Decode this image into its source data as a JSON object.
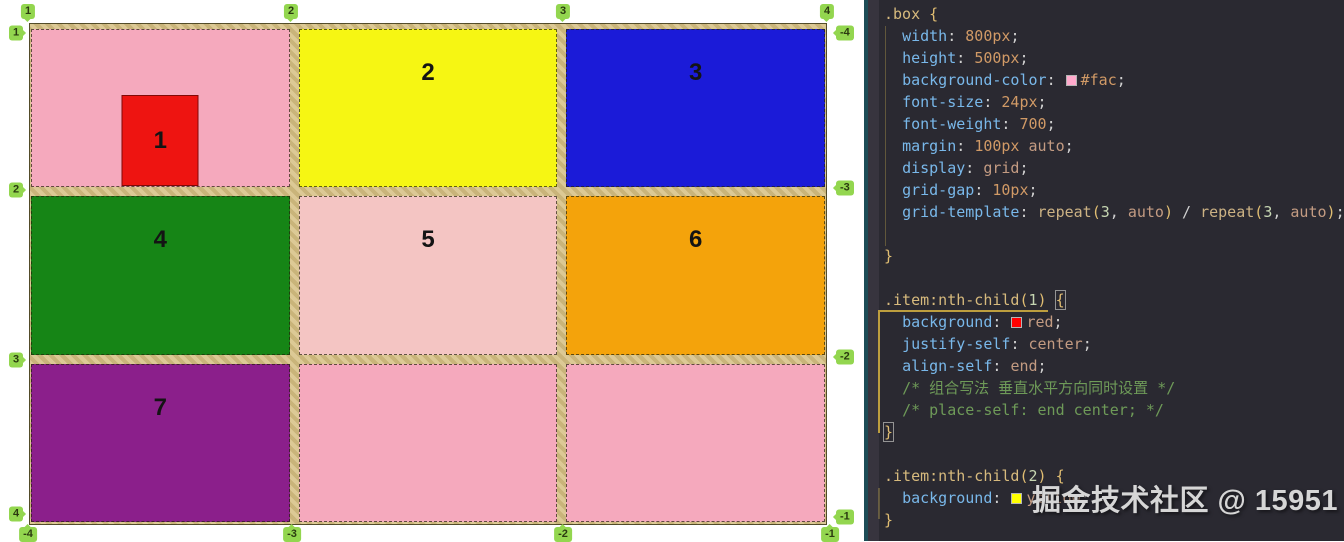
{
  "grid_preview": {
    "line_badges": {
      "top": [
        "1",
        "2",
        "3",
        "4"
      ],
      "left": [
        "1",
        "2",
        "3",
        "4"
      ],
      "right": [
        "-4",
        "-3",
        "-2",
        "-1"
      ],
      "bottom": [
        "-4",
        "-3",
        "-2",
        "-1"
      ]
    },
    "badge_color": "#93d64f",
    "gap_hatch_color": "#cdb87f",
    "box_background": "#ffaacc",
    "cells": [
      {
        "label": "1",
        "bg": "#f5a9bd",
        "item": {
          "label": "1",
          "bg": "#ee1411"
        }
      },
      {
        "label": "2",
        "bg": "#f6f613"
      },
      {
        "label": "3",
        "bg": "#1b1bd8"
      },
      {
        "label": "4",
        "bg": "#168516"
      },
      {
        "label": "5",
        "bg": "#f4c5c3"
      },
      {
        "label": "6",
        "bg": "#f4a30b"
      },
      {
        "label": "7",
        "bg": "#8b1f8b"
      },
      {
        "label": "",
        "bg": "#f5a9bd"
      },
      {
        "label": "",
        "bg": "#f5a9bd"
      }
    ]
  },
  "editor": {
    "swatches": {
      "pink": "#ffaacc",
      "red": "#ff0000",
      "yellow": "#ffff00"
    },
    "lines": [
      {
        "tokens": [
          {
            "t": ".box",
            "c": "sel"
          },
          {
            "t": " ",
            "c": "pun"
          },
          {
            "t": "{",
            "c": "brc"
          }
        ]
      },
      {
        "tokens": [
          {
            "t": "  ",
            "c": "pun"
          },
          {
            "t": "width",
            "c": "prop"
          },
          {
            "t": ": ",
            "c": "pun"
          },
          {
            "t": "800px",
            "c": "num"
          },
          {
            "t": ";",
            "c": "pun"
          }
        ]
      },
      {
        "tokens": [
          {
            "t": "  ",
            "c": "pun"
          },
          {
            "t": "height",
            "c": "prop"
          },
          {
            "t": ": ",
            "c": "pun"
          },
          {
            "t": "500px",
            "c": "num"
          },
          {
            "t": ";",
            "c": "pun"
          }
        ]
      },
      {
        "tokens": [
          {
            "t": "  ",
            "c": "pun"
          },
          {
            "t": "background-color",
            "c": "prop"
          },
          {
            "t": ": ",
            "c": "pun"
          },
          {
            "sw": "pink"
          },
          {
            "t": "#fac",
            "c": "num"
          },
          {
            "t": ";",
            "c": "pun"
          }
        ]
      },
      {
        "tokens": [
          {
            "t": "  ",
            "c": "pun"
          },
          {
            "t": "font-size",
            "c": "prop"
          },
          {
            "t": ": ",
            "c": "pun"
          },
          {
            "t": "24px",
            "c": "num"
          },
          {
            "t": ";",
            "c": "pun"
          }
        ]
      },
      {
        "tokens": [
          {
            "t": "  ",
            "c": "pun"
          },
          {
            "t": "font-weight",
            "c": "prop"
          },
          {
            "t": ": ",
            "c": "pun"
          },
          {
            "t": "700",
            "c": "num"
          },
          {
            "t": ";",
            "c": "pun"
          }
        ]
      },
      {
        "tokens": [
          {
            "t": "  ",
            "c": "pun"
          },
          {
            "t": "margin",
            "c": "prop"
          },
          {
            "t": ": ",
            "c": "pun"
          },
          {
            "t": "100px",
            "c": "num"
          },
          {
            "t": " ",
            "c": "pun"
          },
          {
            "t": "auto",
            "c": "kw"
          },
          {
            "t": ";",
            "c": "pun"
          }
        ]
      },
      {
        "tokens": [
          {
            "t": "  ",
            "c": "pun"
          },
          {
            "t": "display",
            "c": "prop"
          },
          {
            "t": ": ",
            "c": "pun"
          },
          {
            "t": "grid",
            "c": "kw"
          },
          {
            "t": ";",
            "c": "pun"
          }
        ]
      },
      {
        "tokens": [
          {
            "t": "  ",
            "c": "pun"
          },
          {
            "t": "grid-gap",
            "c": "prop"
          },
          {
            "t": ": ",
            "c": "pun"
          },
          {
            "t": "10px",
            "c": "num"
          },
          {
            "t": ";",
            "c": "pun"
          }
        ]
      },
      {
        "tokens": [
          {
            "t": "  ",
            "c": "pun"
          },
          {
            "t": "grid-template",
            "c": "prop"
          },
          {
            "t": ": ",
            "c": "pun"
          },
          {
            "t": "repeat",
            "c": "fn"
          },
          {
            "t": "(",
            "c": "brc"
          },
          {
            "t": "3",
            "c": "cnum"
          },
          {
            "t": ", ",
            "c": "pun"
          },
          {
            "t": "auto",
            "c": "kw"
          },
          {
            "t": ")",
            "c": "brc"
          },
          {
            "t": " / ",
            "c": "pun"
          },
          {
            "t": "repeat",
            "c": "fn"
          },
          {
            "t": "(",
            "c": "brc"
          },
          {
            "t": "3",
            "c": "cnum"
          },
          {
            "t": ", ",
            "c": "pun"
          },
          {
            "t": "auto",
            "c": "kw"
          },
          {
            "t": ")",
            "c": "brc"
          },
          {
            "t": ";",
            "c": "pun"
          }
        ]
      },
      {
        "tokens": []
      },
      {
        "tokens": [
          {
            "t": "}",
            "c": "brc"
          }
        ]
      },
      {
        "tokens": []
      },
      {
        "tokens": [
          {
            "t": ".item:nth-child",
            "c": "sel"
          },
          {
            "t": "(",
            "c": "brc"
          },
          {
            "t": "1",
            "c": "cnum"
          },
          {
            "t": ")",
            "c": "brc"
          },
          {
            "t": " ",
            "c": "pun"
          },
          {
            "t": "{",
            "c": "brc",
            "box": true
          }
        ]
      },
      {
        "tokens": [
          {
            "t": "  ",
            "c": "pun"
          },
          {
            "t": "background",
            "c": "prop"
          },
          {
            "t": ": ",
            "c": "pun"
          },
          {
            "sw": "red"
          },
          {
            "t": "red",
            "c": "kw"
          },
          {
            "t": ";",
            "c": "pun"
          }
        ]
      },
      {
        "tokens": [
          {
            "t": "  ",
            "c": "pun"
          },
          {
            "t": "justify-self",
            "c": "prop"
          },
          {
            "t": ": ",
            "c": "pun"
          },
          {
            "t": "center",
            "c": "kw"
          },
          {
            "t": ";",
            "c": "pun"
          }
        ]
      },
      {
        "tokens": [
          {
            "t": "  ",
            "c": "pun"
          },
          {
            "t": "align-self",
            "c": "prop"
          },
          {
            "t": ": ",
            "c": "pun"
          },
          {
            "t": "end",
            "c": "kw"
          },
          {
            "t": ";",
            "c": "pun"
          }
        ]
      },
      {
        "tokens": [
          {
            "t": "  ",
            "c": "pun"
          },
          {
            "t": "/* 组合写法 垂直水平方向同时设置 */",
            "c": "cmt"
          }
        ]
      },
      {
        "tokens": [
          {
            "t": "  ",
            "c": "pun"
          },
          {
            "t": "/* place-self: end center; */",
            "c": "cmt"
          }
        ]
      },
      {
        "tokens": [
          {
            "t": "}",
            "c": "brc",
            "box": true
          }
        ]
      },
      {
        "tokens": []
      },
      {
        "tokens": [
          {
            "t": ".item:nth-child",
            "c": "sel"
          },
          {
            "t": "(",
            "c": "brc"
          },
          {
            "t": "2",
            "c": "cnum"
          },
          {
            "t": ")",
            "c": "brc"
          },
          {
            "t": " ",
            "c": "pun"
          },
          {
            "t": "{",
            "c": "brc"
          }
        ]
      },
      {
        "tokens": [
          {
            "t": "  ",
            "c": "pun"
          },
          {
            "t": "background",
            "c": "prop"
          },
          {
            "t": ": ",
            "c": "pun"
          },
          {
            "sw": "yellow"
          },
          {
            "t": "yellow",
            "c": "kw"
          },
          {
            "t": ";",
            "c": "pun"
          }
        ]
      },
      {
        "tokens": [
          {
            "t": "}",
            "c": "brc"
          }
        ]
      }
    ]
  },
  "watermark": {
    "text": "掘金技术社区 @ 15951"
  }
}
